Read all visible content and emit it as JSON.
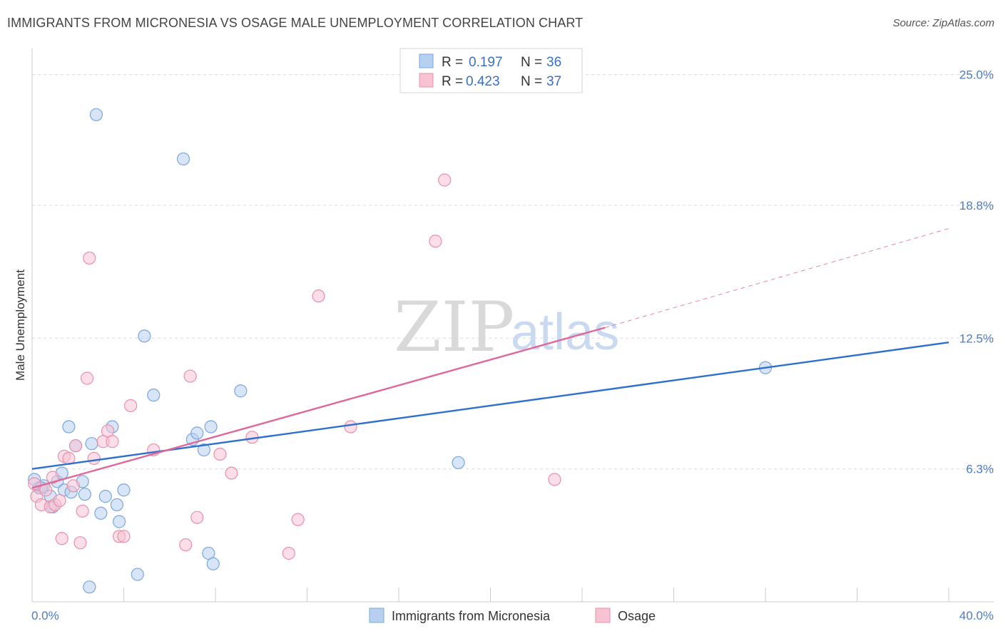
{
  "title": "IMMIGRANTS FROM MICRONESIA VS OSAGE MALE UNEMPLOYMENT CORRELATION CHART",
  "source": "Source: ZipAtlas.com",
  "watermark": {
    "zip": "ZIP",
    "atlas": "atlas"
  },
  "colors": {
    "blue_fill": "#b8d0f0",
    "blue_stroke": "#7aa6de",
    "blue_line": "#2e6fd0",
    "pink_fill": "#f7c3d3",
    "pink_stroke": "#e890ab",
    "pink_line": "#e0679a",
    "grid": "#dcdcdc",
    "tick_text": "#4a7cc8"
  },
  "legend": {
    "rows": [
      {
        "r_label": "R =",
        "r_value": "0.197",
        "n_label": "N =",
        "n_value": "36"
      },
      {
        "r_label": "R =",
        "r_value": "0.423",
        "n_label": "N =",
        "n_value": "37"
      }
    ]
  },
  "bottom_legend": [
    "Immigrants from Micronesia",
    "Osage"
  ],
  "chart_data": {
    "type": "scatter",
    "title": "IMMIGRANTS FROM MICRONESIA VS OSAGE MALE UNEMPLOYMENT CORRELATION CHART",
    "xlabel": "",
    "ylabel": "Male Unemployment",
    "xlim": [
      0,
      40
    ],
    "ylim": [
      0,
      25.9
    ],
    "x_tick_labels": [
      "0.0%",
      "40.0%"
    ],
    "y_ticks": [
      6.3,
      12.5,
      18.8,
      25.0
    ],
    "y_tick_labels": [
      "6.3%",
      "12.5%",
      "18.8%",
      "25.0%"
    ],
    "grid": true,
    "series": [
      {
        "name": "Immigrants from Micronesia",
        "r": 0.197,
        "n": 36,
        "trend": {
          "x0": 0,
          "y0": 6.3,
          "x1": 40,
          "y1": 12.3,
          "dashed_to": 40
        },
        "points": [
          [
            0.1,
            5.8
          ],
          [
            0.3,
            5.4
          ],
          [
            0.5,
            5.5
          ],
          [
            0.8,
            5.0
          ],
          [
            0.9,
            4.5
          ],
          [
            1.1,
            5.7
          ],
          [
            1.3,
            6.1
          ],
          [
            1.4,
            5.3
          ],
          [
            1.6,
            8.3
          ],
          [
            1.7,
            5.2
          ],
          [
            1.9,
            7.4
          ],
          [
            2.2,
            5.7
          ],
          [
            2.3,
            5.1
          ],
          [
            2.6,
            7.5
          ],
          [
            2.8,
            23.1
          ],
          [
            3.0,
            4.2
          ],
          [
            3.2,
            5.0
          ],
          [
            3.5,
            8.3
          ],
          [
            3.7,
            4.6
          ],
          [
            3.8,
            3.8
          ],
          [
            4.0,
            5.3
          ],
          [
            4.6,
            1.3
          ],
          [
            4.9,
            12.6
          ],
          [
            5.3,
            9.8
          ],
          [
            6.6,
            21.0
          ],
          [
            7.0,
            7.7
          ],
          [
            7.2,
            8.0
          ],
          [
            7.5,
            7.2
          ],
          [
            7.7,
            2.3
          ],
          [
            7.8,
            8.3
          ],
          [
            7.9,
            1.8
          ],
          [
            9.1,
            10.0
          ],
          [
            2.5,
            0.7
          ],
          [
            18.6,
            6.6
          ],
          [
            32.0,
            11.1
          ],
          [
            0.4,
            5.4
          ]
        ]
      },
      {
        "name": "Osage",
        "r": 0.423,
        "n": 37,
        "trend": {
          "x0": 0,
          "y0": 5.4,
          "x1": 25,
          "y1": 13.0,
          "dashed_to": 40,
          "dashed_y1": 17.7
        },
        "points": [
          [
            0.1,
            5.6
          ],
          [
            0.2,
            5.0
          ],
          [
            0.4,
            4.6
          ],
          [
            0.6,
            5.3
          ],
          [
            0.8,
            4.5
          ],
          [
            0.9,
            5.9
          ],
          [
            1.0,
            4.6
          ],
          [
            1.2,
            4.8
          ],
          [
            1.3,
            3.0
          ],
          [
            1.4,
            6.9
          ],
          [
            1.6,
            6.8
          ],
          [
            1.8,
            5.5
          ],
          [
            1.9,
            7.4
          ],
          [
            2.1,
            2.8
          ],
          [
            2.2,
            4.3
          ],
          [
            2.4,
            10.6
          ],
          [
            2.5,
            16.3
          ],
          [
            2.7,
            6.8
          ],
          [
            3.1,
            7.6
          ],
          [
            3.3,
            8.1
          ],
          [
            3.5,
            7.6
          ],
          [
            3.8,
            3.1
          ],
          [
            4.0,
            3.1
          ],
          [
            4.3,
            9.3
          ],
          [
            5.3,
            7.2
          ],
          [
            6.7,
            2.7
          ],
          [
            6.9,
            10.7
          ],
          [
            7.2,
            4.0
          ],
          [
            8.2,
            7.0
          ],
          [
            8.7,
            6.1
          ],
          [
            9.6,
            7.8
          ],
          [
            11.2,
            2.3
          ],
          [
            11.6,
            3.9
          ],
          [
            12.5,
            14.5
          ],
          [
            13.9,
            8.3
          ],
          [
            17.6,
            17.1
          ],
          [
            18.0,
            20.0
          ]
        ]
      }
    ],
    "extra_points": {
      "pink_far": [
        22.8,
        5.8
      ]
    }
  }
}
